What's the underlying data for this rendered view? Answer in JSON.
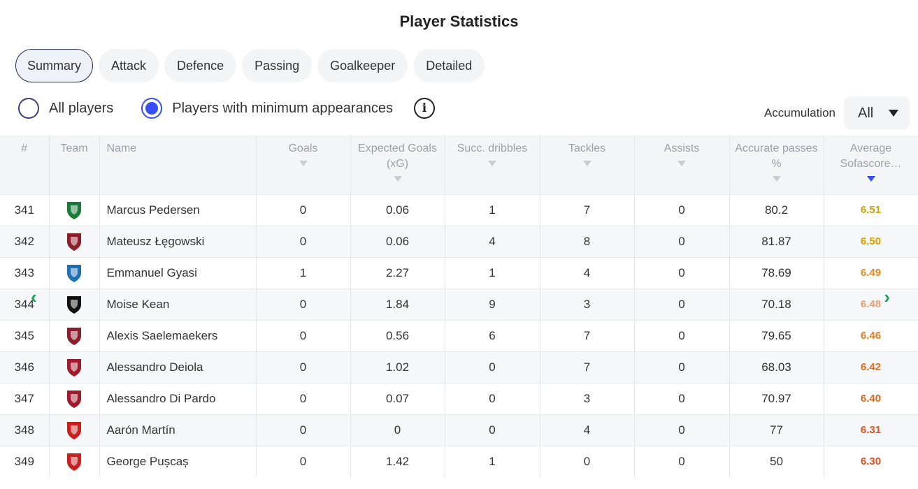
{
  "title": "Player Statistics",
  "tabs": [
    "Summary",
    "Attack",
    "Defence",
    "Passing",
    "Goalkeeper",
    "Detailed"
  ],
  "active_tab": "Summary",
  "filters": {
    "all_players": "All players",
    "min_appearances": "Players with minimum appearances",
    "selected": "min_appearances",
    "info_glyph": "i"
  },
  "accumulation": {
    "label": "Accumulation",
    "value": "All"
  },
  "columns": {
    "rank": "#",
    "team": "Team",
    "name": "Name",
    "goals": "Goals",
    "xg": "Expected Goals (xG)",
    "dribbles": "Succ. dribbles",
    "tackles": "Tackles",
    "assists": "Assists",
    "passes": "Accurate passes %",
    "rating": "Average Sofascore…"
  },
  "sorted_column": "rating",
  "colors": {
    "accent": "#374df5",
    "rating_high": "#c9a100",
    "rating_mid": "#e08a1e",
    "rating_low": "#e0541e",
    "nav": "#1aa05a"
  },
  "nav": {
    "left_icon": "chevron-left-icon",
    "right_icon": "chevron-right-icon",
    "left_glyph": "‹",
    "right_glyph": "›"
  },
  "rows": [
    {
      "rank": "341",
      "team_icon": "sassuolo-crest-icon",
      "crest_color": "#1b7a3a",
      "name": "Marcus Pedersen",
      "goals": "0",
      "xg": "0.06",
      "dribbles": "1",
      "tackles": "7",
      "assists": "0",
      "passes": "80.2",
      "rating": "6.51",
      "rating_color": "#c9a100"
    },
    {
      "rank": "342",
      "team_icon": "salernitana-crest-icon",
      "crest_color": "#8a1e2a",
      "name": "Mateusz Łęgowski",
      "goals": "0",
      "xg": "0.06",
      "dribbles": "4",
      "tackles": "8",
      "assists": "0",
      "passes": "81.87",
      "rating": "6.50",
      "rating_color": "#d9a000"
    },
    {
      "rank": "343",
      "team_icon": "empoli-crest-icon",
      "crest_color": "#1f6fb3",
      "name": "Emmanuel Gyasi",
      "goals": "1",
      "xg": "2.27",
      "dribbles": "1",
      "tackles": "4",
      "assists": "0",
      "passes": "78.69",
      "rating": "6.49",
      "rating_color": "#e08a1e"
    },
    {
      "rank": "344",
      "team_icon": "juventus-crest-icon",
      "crest_color": "#111111",
      "name": "Moise Kean",
      "goals": "0",
      "xg": "1.84",
      "dribbles": "9",
      "tackles": "3",
      "assists": "0",
      "passes": "70.18",
      "rating": "6.48",
      "rating_color": "#e8a070"
    },
    {
      "rank": "345",
      "team_icon": "bologna-crest-icon",
      "crest_color": "#8a1e2a",
      "name": "Alexis Saelemaekers",
      "goals": "0",
      "xg": "0.56",
      "dribbles": "6",
      "tackles": "7",
      "assists": "0",
      "passes": "79.65",
      "rating": "6.46",
      "rating_color": "#e07a1e"
    },
    {
      "rank": "346",
      "team_icon": "cagliari-crest-icon",
      "crest_color": "#a01a2e",
      "name": "Alessandro Deiola",
      "goals": "0",
      "xg": "1.02",
      "dribbles": "0",
      "tackles": "7",
      "assists": "0",
      "passes": "68.03",
      "rating": "6.42",
      "rating_color": "#e0701e"
    },
    {
      "rank": "347",
      "team_icon": "cagliari-crest-icon",
      "crest_color": "#a01a2e",
      "name": "Alessandro Di Pardo",
      "goals": "0",
      "xg": "0.07",
      "dribbles": "0",
      "tackles": "3",
      "assists": "0",
      "passes": "70.97",
      "rating": "6.40",
      "rating_color": "#e0681e"
    },
    {
      "rank": "348",
      "team_icon": "genoa-crest-icon",
      "crest_color": "#c8201e",
      "name": "Aarón Martín",
      "goals": "0",
      "xg": "0",
      "dribbles": "0",
      "tackles": "4",
      "assists": "0",
      "passes": "77",
      "rating": "6.31",
      "rating_color": "#e0541e"
    },
    {
      "rank": "349",
      "team_icon": "genoa-crest-icon",
      "crest_color": "#c8201e",
      "name": "George Pușcaș",
      "goals": "0",
      "xg": "1.42",
      "dribbles": "1",
      "tackles": "0",
      "assists": "0",
      "passes": "50",
      "rating": "6.30",
      "rating_color": "#e0541e"
    }
  ]
}
